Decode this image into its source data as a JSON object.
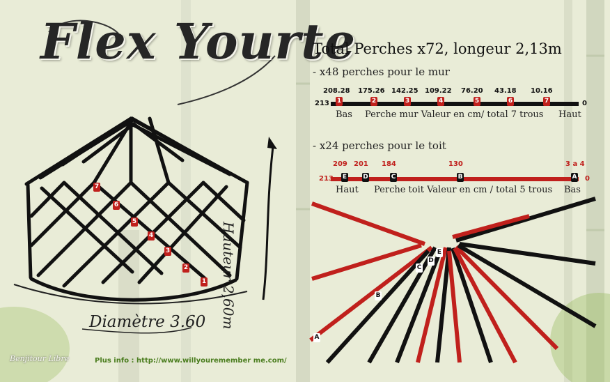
{
  "title": "Flex Yourte",
  "diameter": "Diamètre  3.60",
  "height": "Hauteur 2,60m",
  "total": "Total Perches x72, longeur 2,13m",
  "wall": {
    "heading": "- x48 perches pour le mur",
    "values": [
      "208.28",
      "175.26",
      "142.25",
      "109.22",
      "76.20",
      "43.18",
      "10.16"
    ],
    "holes": [
      "1",
      "2",
      "3",
      "4",
      "5",
      "6",
      "7"
    ],
    "start": "213",
    "end": "0",
    "left_label": "Bas",
    "caption": "Perche mur Valeur en cm/ total 7 trous",
    "right_label": "Haut"
  },
  "roof": {
    "heading": "- x24 perches pour le toit",
    "values": [
      "209",
      "201",
      "184",
      "130",
      "3 a 4"
    ],
    "holes": [
      "E",
      "D",
      "C",
      "B",
      "A"
    ],
    "start": "213",
    "end": "0",
    "left_label": "Haut",
    "caption": "Perche toit Valeur en cm / total 5 trous",
    "right_label": "Bas"
  },
  "diagram_holes": [
    "1",
    "2",
    "3",
    "4",
    "5",
    "6",
    "7"
  ],
  "roof_diagram_holes": [
    "A",
    "B",
    "C",
    "D",
    "E"
  ],
  "info": "Plus info : http://www.willyouremember me.com/",
  "signature": "Benjitour  Libre",
  "colors": {
    "red": "#c0201c",
    "black": "#111111",
    "background": "#e9ecd7"
  }
}
